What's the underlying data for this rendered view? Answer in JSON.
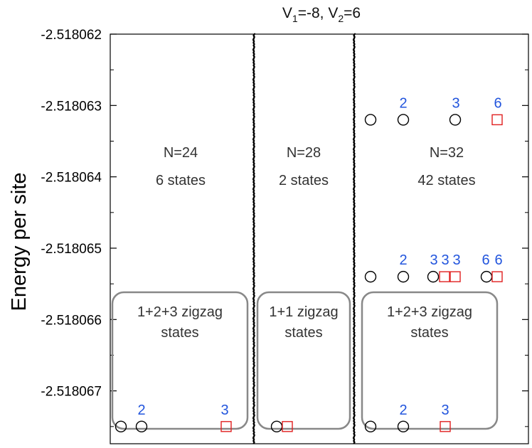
{
  "chart_data": {
    "type": "scatter",
    "title": "V₁=-8, V₂=6",
    "title_parts": {
      "v1_label": "V",
      "v1_sub": "1",
      "v1_val": "=-8, ",
      "v2_label": "V",
      "v2_sub": "2",
      "v2_val": "=6"
    },
    "ylabel": "Energy per site",
    "ylim": [
      -2.518067741,
      -2.518062
    ],
    "yticks": [
      "-2.518062",
      "-2.518063",
      "-2.518064",
      "-2.518065",
      "-2.518066",
      "-2.518067"
    ],
    "ytick_values": [
      -2.518062,
      -2.518063,
      -2.518064,
      -2.518065,
      -2.518066,
      -2.518067
    ],
    "grid": false,
    "colors": {
      "circle": "#000000",
      "square": "#e02020",
      "multiplicity_label": "#2255dd",
      "box": "#888888",
      "text": "#333333"
    },
    "panels": [
      {
        "n_label": "N=24",
        "states_label": "6 states",
        "box_line1": "1+2+3 zigzag",
        "box_line2": "states",
        "markers": [
          {
            "energy": -2.5180675,
            "shape": "circle",
            "label": ""
          },
          {
            "energy": -2.5180675,
            "shape": "circle",
            "label": "2"
          },
          {
            "energy": -2.5180675,
            "shape": "square",
            "label": "3"
          }
        ]
      },
      {
        "n_label": "N=28",
        "states_label": "2 states",
        "box_line1": "1+1 zigzag",
        "box_line2": "states",
        "markers": [
          {
            "energy": -2.5180675,
            "shape": "circle",
            "label": ""
          },
          {
            "energy": -2.5180675,
            "shape": "square",
            "label": ""
          }
        ]
      },
      {
        "n_label": "N=32",
        "states_label": "42 states",
        "box_line1": "1+2+3 zigzag",
        "box_line2": "states",
        "markers": [
          {
            "energy": -2.5180632,
            "shape": "circle",
            "label": ""
          },
          {
            "energy": -2.5180632,
            "shape": "circle",
            "label": "2"
          },
          {
            "energy": -2.5180632,
            "shape": "circle",
            "label": "3"
          },
          {
            "energy": -2.5180632,
            "shape": "square",
            "label": "6"
          },
          {
            "energy": -2.5180654,
            "shape": "circle",
            "label": ""
          },
          {
            "energy": -2.5180654,
            "shape": "circle",
            "label": "2"
          },
          {
            "energy": -2.5180654,
            "shape": "circle",
            "label": "3"
          },
          {
            "energy": -2.5180654,
            "shape": "square",
            "label": "3"
          },
          {
            "energy": -2.5180654,
            "shape": "square",
            "label": "3"
          },
          {
            "energy": -2.5180654,
            "shape": "circle",
            "label": "6"
          },
          {
            "energy": -2.5180654,
            "shape": "square",
            "label": "6"
          },
          {
            "energy": -2.5180675,
            "shape": "circle",
            "label": ""
          },
          {
            "energy": -2.5180675,
            "shape": "circle",
            "label": "2"
          },
          {
            "energy": -2.5180675,
            "shape": "square",
            "label": "3"
          }
        ]
      }
    ]
  }
}
